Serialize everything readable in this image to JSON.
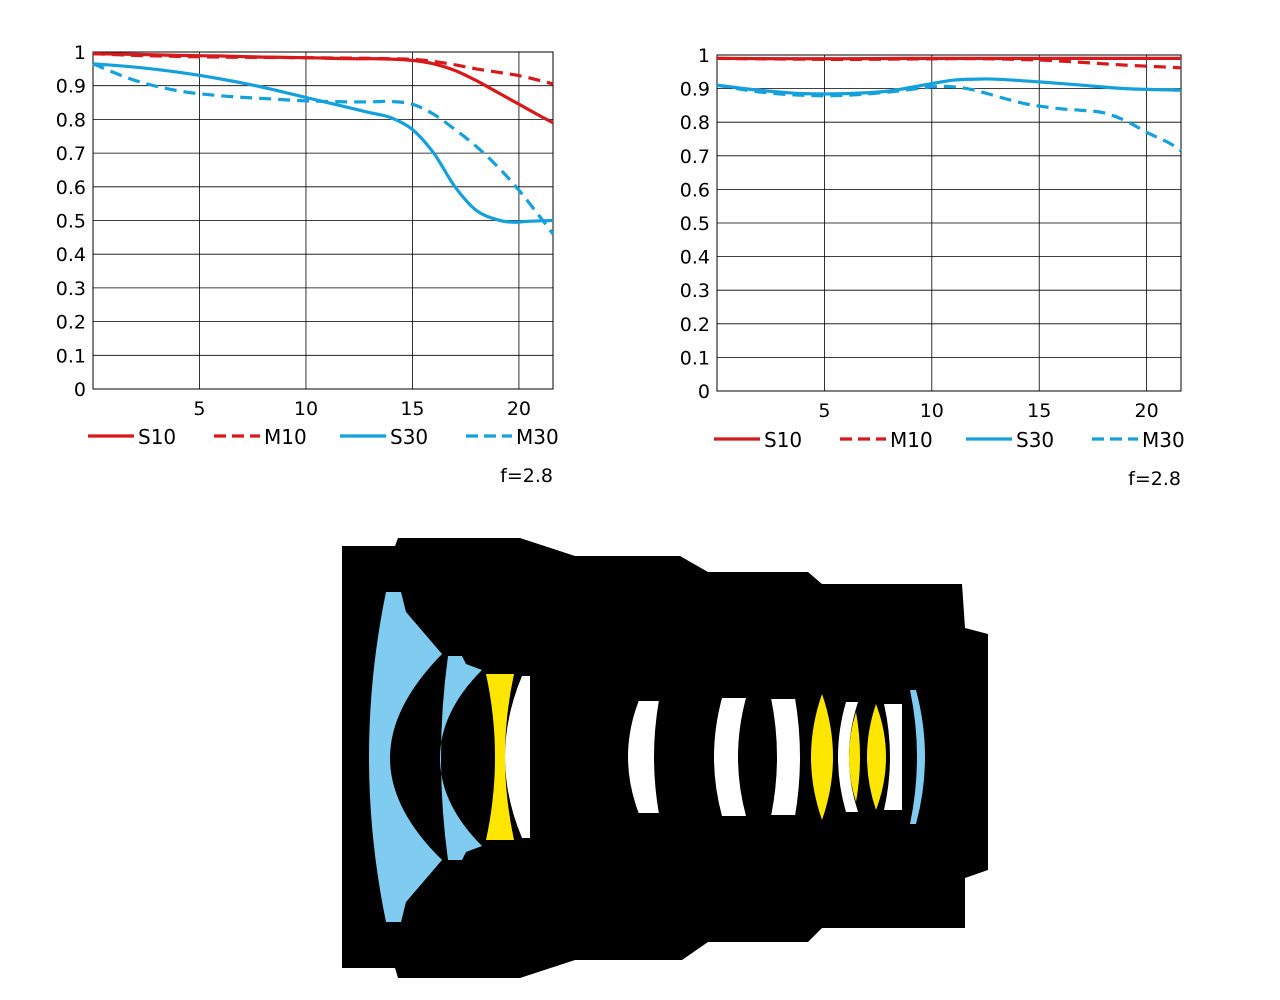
{
  "chart_data": [
    {
      "type": "line",
      "xlabel": "",
      "ylabel": "",
      "xlim": [
        0,
        21.6
      ],
      "ylim": [
        0,
        1
      ],
      "grid": true,
      "x_ticks": [
        5,
        10,
        15,
        20
      ],
      "y_ticks": [
        0,
        0.1,
        0.2,
        0.3,
        0.4,
        0.5,
        0.6,
        0.7,
        0.8,
        0.9,
        1
      ],
      "legend_placement": "bottom",
      "note": "f=2.8",
      "series": [
        {
          "name": "S10",
          "color": "#d7191c",
          "dash": "solid",
          "x": [
            0,
            2,
            4,
            6,
            8,
            10,
            12,
            13,
            14,
            15,
            16,
            17,
            18,
            19,
            20,
            21,
            21.6
          ],
          "y": [
            0.995,
            0.993,
            0.99,
            0.988,
            0.985,
            0.983,
            0.98,
            0.98,
            0.979,
            0.975,
            0.965,
            0.945,
            0.915,
            0.88,
            0.845,
            0.81,
            0.79
          ]
        },
        {
          "name": "M10",
          "color": "#d7191c",
          "dash": "dashed",
          "x": [
            0,
            2,
            4,
            6,
            8,
            10,
            12,
            14,
            15,
            16,
            17,
            18,
            19,
            20,
            21,
            21.6
          ],
          "y": [
            0.995,
            0.99,
            0.987,
            0.985,
            0.984,
            0.983,
            0.982,
            0.98,
            0.978,
            0.972,
            0.962,
            0.95,
            0.94,
            0.93,
            0.915,
            0.905
          ]
        },
        {
          "name": "S30",
          "color": "#14a0dc",
          "dash": "solid",
          "x": [
            0,
            2,
            4,
            6,
            8,
            10,
            12,
            13,
            14,
            15,
            16,
            17,
            18,
            19,
            19.7,
            20.5,
            21.6
          ],
          "y": [
            0.965,
            0.955,
            0.94,
            0.92,
            0.895,
            0.865,
            0.835,
            0.82,
            0.805,
            0.77,
            0.7,
            0.6,
            0.53,
            0.502,
            0.495,
            0.498,
            0.5
          ]
        },
        {
          "name": "M30",
          "color": "#14a0dc",
          "dash": "dashed",
          "x": [
            0,
            2,
            4,
            6,
            8,
            10,
            12,
            13,
            14,
            15,
            16,
            17,
            18,
            19,
            20,
            21,
            21.6
          ],
          "y": [
            0.965,
            0.915,
            0.885,
            0.87,
            0.862,
            0.855,
            0.852,
            0.852,
            0.853,
            0.845,
            0.815,
            0.77,
            0.72,
            0.66,
            0.59,
            0.51,
            0.46
          ]
        }
      ]
    },
    {
      "type": "line",
      "xlabel": "",
      "ylabel": "",
      "xlim": [
        0,
        21.6
      ],
      "ylim": [
        0,
        1
      ],
      "grid": true,
      "x_ticks": [
        5,
        10,
        15,
        20
      ],
      "y_ticks": [
        0,
        0.1,
        0.2,
        0.3,
        0.4,
        0.5,
        0.6,
        0.7,
        0.8,
        0.9,
        1
      ],
      "legend_placement": "bottom",
      "note": "f=2.8",
      "series": [
        {
          "name": "S10",
          "color": "#d7191c",
          "dash": "solid",
          "x": [
            0,
            3,
            6,
            9,
            12,
            15,
            18,
            21.6
          ],
          "y": [
            0.99,
            0.989,
            0.989,
            0.99,
            0.99,
            0.99,
            0.99,
            0.99
          ]
        },
        {
          "name": "M10",
          "color": "#d7191c",
          "dash": "dashed",
          "x": [
            0,
            3,
            6,
            9,
            12,
            15,
            17,
            19,
            21.6
          ],
          "y": [
            0.99,
            0.988,
            0.987,
            0.988,
            0.989,
            0.985,
            0.978,
            0.97,
            0.962
          ]
        },
        {
          "name": "S30",
          "color": "#14a0dc",
          "dash": "solid",
          "x": [
            0,
            2,
            4,
            6,
            8,
            10,
            11,
            12,
            13,
            15,
            17,
            19,
            21.6
          ],
          "y": [
            0.91,
            0.895,
            0.885,
            0.885,
            0.893,
            0.915,
            0.925,
            0.928,
            0.928,
            0.92,
            0.91,
            0.9,
            0.895
          ]
        },
        {
          "name": "M30",
          "color": "#14a0dc",
          "dash": "dashed",
          "x": [
            0,
            2,
            4,
            6,
            8,
            10,
            11,
            12,
            14,
            15,
            16,
            17,
            18,
            19,
            20,
            21,
            21.6
          ],
          "y": [
            0.91,
            0.89,
            0.88,
            0.88,
            0.89,
            0.905,
            0.905,
            0.895,
            0.86,
            0.848,
            0.84,
            0.835,
            0.828,
            0.805,
            0.77,
            0.74,
            0.715
          ]
        }
      ]
    }
  ],
  "lens_diagram": {
    "body_color": "#000000",
    "element_colors": {
      "aspherical": "#7fccf0",
      "ed": "#ffe600",
      "standard": "#ffffff"
    }
  }
}
